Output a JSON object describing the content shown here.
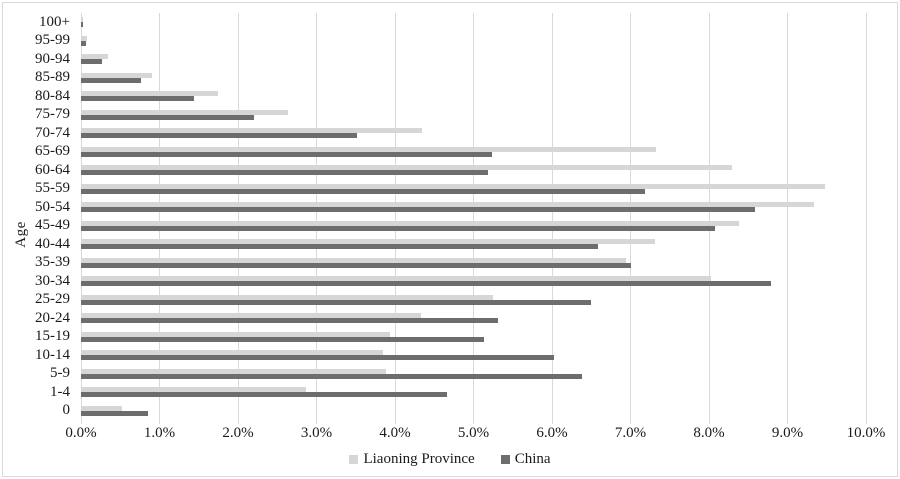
{
  "chart_data": {
    "type": "bar",
    "orientation": "horizontal",
    "title": "",
    "xlabel": "",
    "ylabel": "Age",
    "xlim": [
      0,
      10
    ],
    "x_unit": "percent",
    "x_tick_labels": [
      "0.0%",
      "1.0%",
      "2.0%",
      "3.0%",
      "4.0%",
      "5.0%",
      "6.0%",
      "7.0%",
      "8.0%",
      "9.0%",
      "10.0%"
    ],
    "grid": "vertical-on",
    "legend_position": "bottom-center",
    "categories": [
      "100+",
      "95-99",
      "90-94",
      "85-89",
      "80-84",
      "75-79",
      "70-74",
      "65-69",
      "60-64",
      "55-59",
      "50-54",
      "45-49",
      "40-44",
      "35-39",
      "30-34",
      "25-29",
      "20-24",
      "15-19",
      "10-14",
      "5-9",
      "1-4",
      "0"
    ],
    "series": [
      {
        "name": "Liaoning Province",
        "color": "#d6d6d6",
        "values": [
          0.02,
          0.08,
          0.34,
          0.91,
          1.75,
          2.64,
          4.35,
          7.32,
          8.29,
          9.48,
          9.34,
          8.38,
          7.31,
          6.94,
          8.03,
          5.25,
          4.33,
          3.94,
          3.85,
          3.89,
          2.86,
          0.52
        ]
      },
      {
        "name": "China",
        "color": "#6f6c6c",
        "values": [
          0.02,
          0.07,
          0.27,
          0.77,
          1.44,
          2.21,
          3.52,
          5.24,
          5.18,
          7.18,
          8.58,
          8.08,
          6.58,
          7.01,
          8.79,
          6.5,
          5.31,
          5.14,
          6.03,
          6.38,
          4.66,
          0.85
        ]
      }
    ],
    "gridline_color": "#d9d9d9",
    "border_color": "#d9d9d9"
  }
}
